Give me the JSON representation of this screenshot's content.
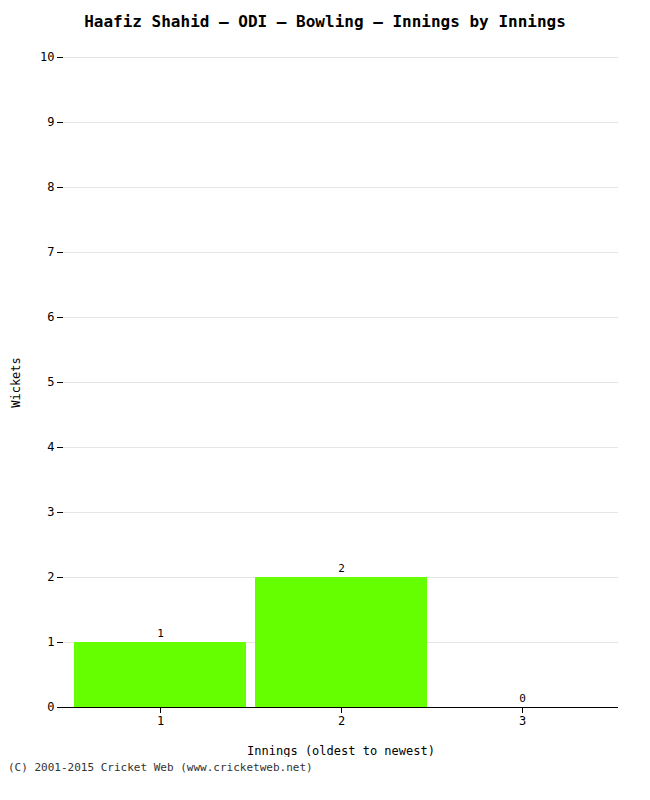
{
  "chart_data": {
    "type": "bar",
    "title": "Haafiz Shahid – ODI – Bowling – Innings by Innings",
    "xlabel": "Innings (oldest to newest)",
    "ylabel": "Wickets",
    "caption": "(C) 2001-2015 Cricket Web (www.cricketweb.net)",
    "categories": [
      "1",
      "2",
      "3"
    ],
    "values": [
      1,
      2,
      0
    ],
    "color": "#66ff00",
    "ylim": [
      0,
      10
    ],
    "yticks": [
      0,
      1,
      2,
      3,
      4,
      5,
      6,
      7,
      8,
      9,
      10
    ],
    "grid": true,
    "data_labels": true
  }
}
